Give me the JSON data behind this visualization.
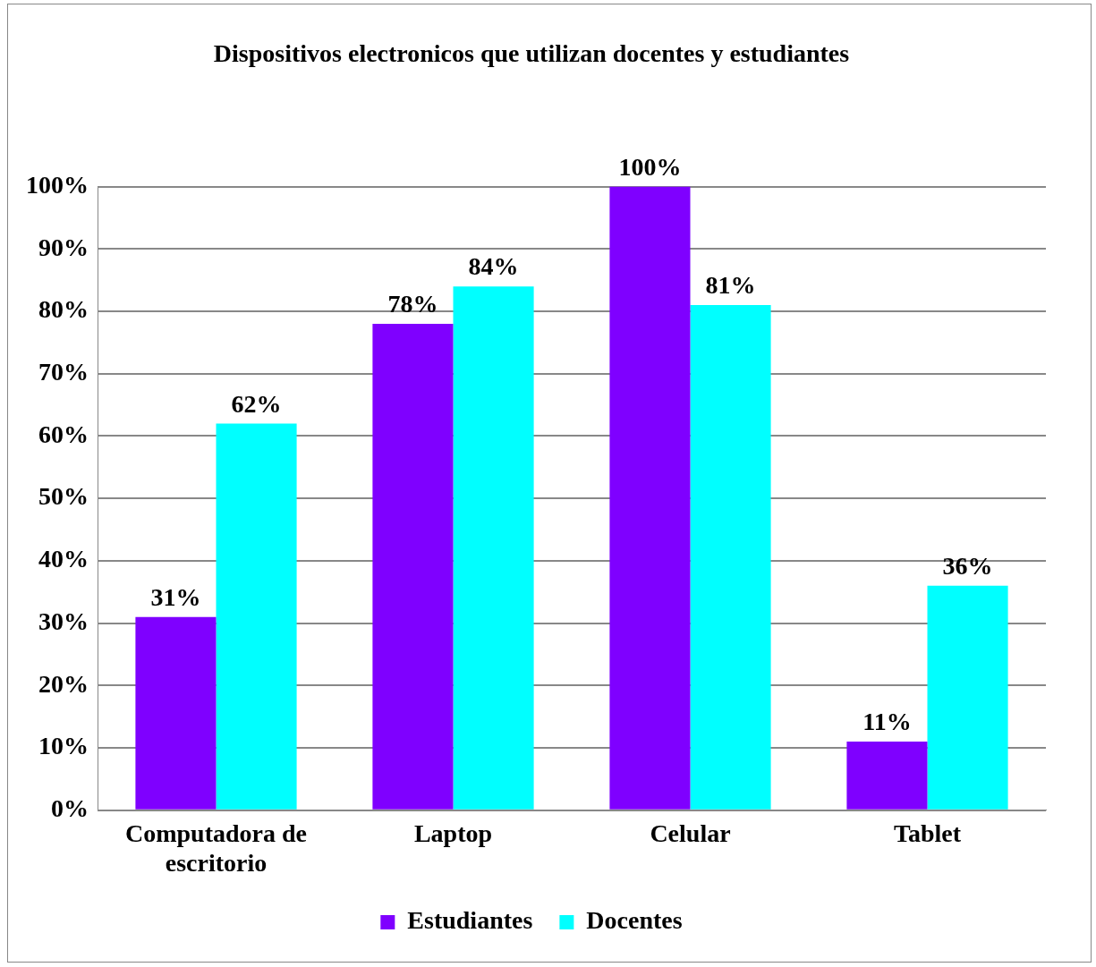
{
  "chart_data": {
    "type": "bar",
    "title": "Dispositivos electronicos que utilizan docentes y estudiantes",
    "categories": [
      "Computadora de escritorio",
      "Laptop",
      "Celular",
      "Tablet"
    ],
    "series": [
      {
        "name": "Estudiantes",
        "color": "#7f00ff",
        "values": [
          31,
          78,
          100,
          11
        ],
        "value_labels": [
          "31%",
          "78%",
          "100%",
          "11%"
        ]
      },
      {
        "name": "Docentes",
        "color": "#00ffff",
        "values": [
          62,
          84,
          81,
          36
        ],
        "value_labels": [
          "62%",
          "84%",
          "81%",
          "36%"
        ]
      }
    ],
    "ylim": [
      0,
      100
    ],
    "yticks": [
      {
        "value": 0,
        "label": "0%"
      },
      {
        "value": 10,
        "label": "10%"
      },
      {
        "value": 20,
        "label": "20%"
      },
      {
        "value": 30,
        "label": "30%"
      },
      {
        "value": 40,
        "label": "40%"
      },
      {
        "value": 50,
        "label": "50%"
      },
      {
        "value": 60,
        "label": "60%"
      },
      {
        "value": 70,
        "label": "70%"
      },
      {
        "value": 80,
        "label": "80%"
      },
      {
        "value": 90,
        "label": "90%"
      },
      {
        "value": 100,
        "label": "100%"
      }
    ],
    "grid": "y",
    "legend": "bottom"
  }
}
